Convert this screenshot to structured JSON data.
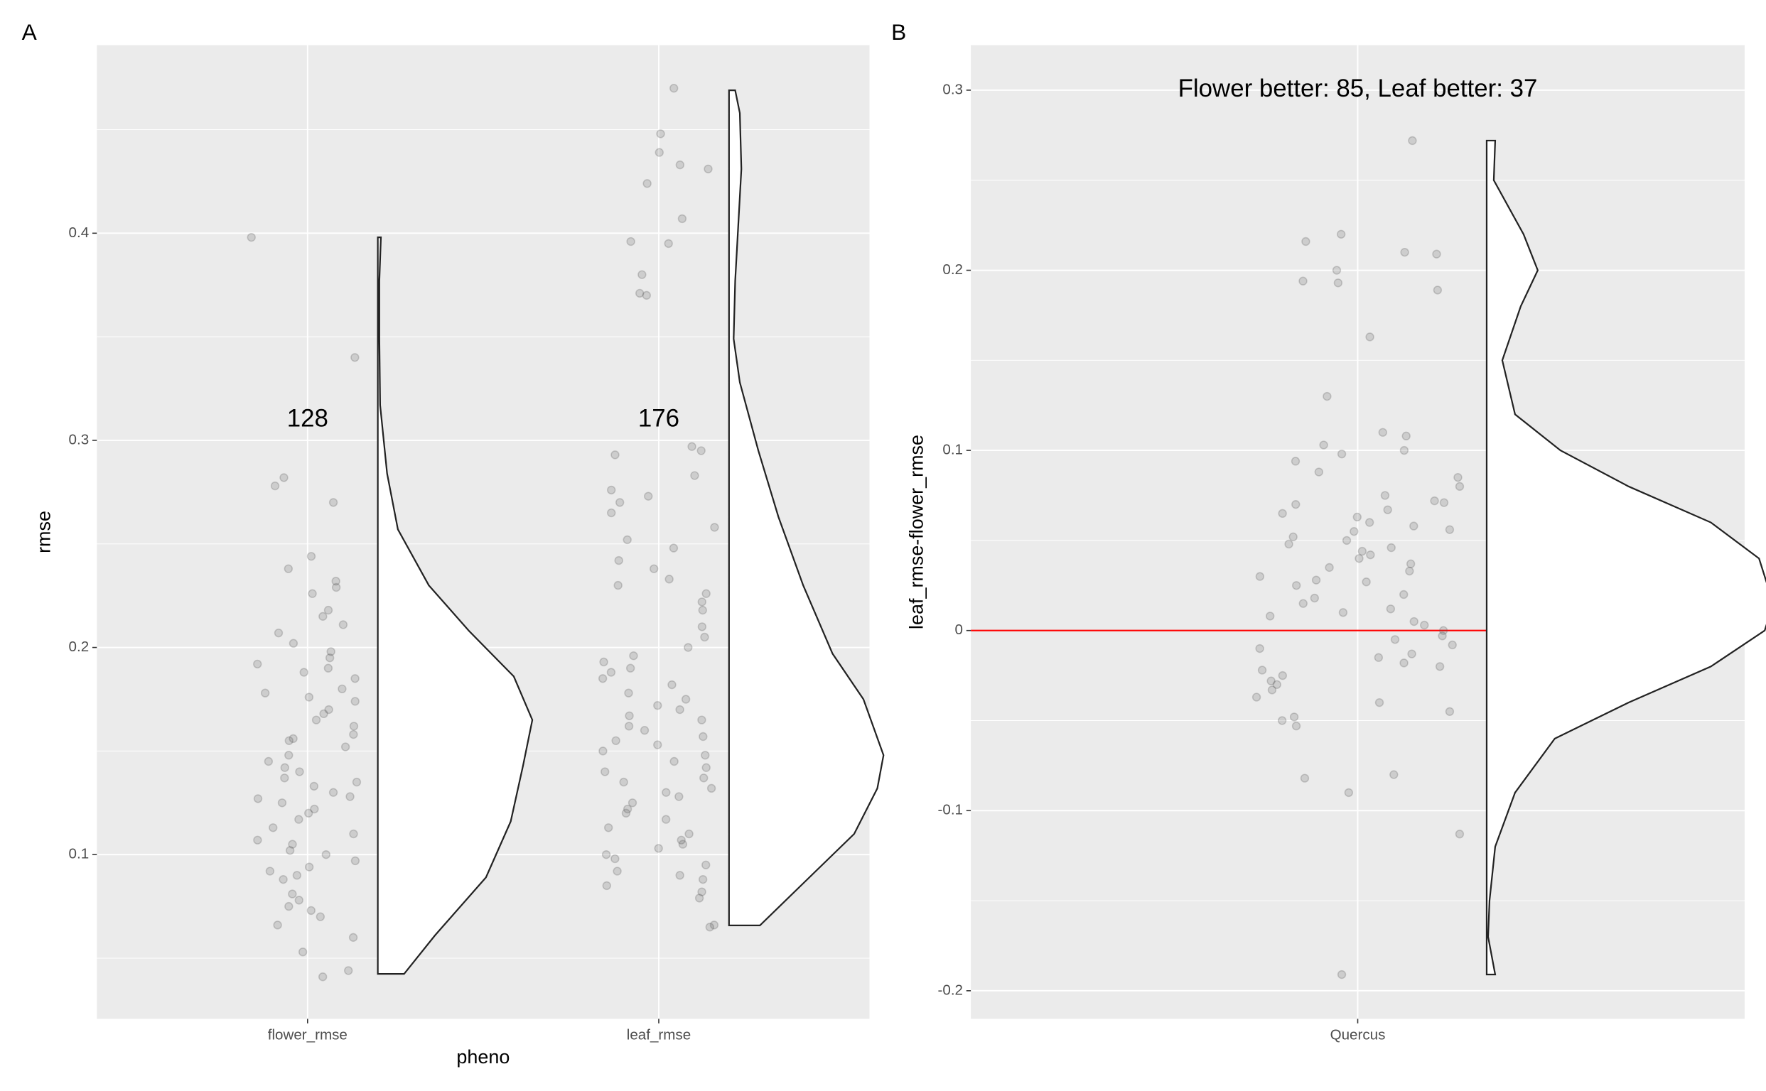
{
  "chart_data": [
    {
      "type": "raincloud",
      "tag": "A",
      "ylabel": "rmse",
      "xlabel": "pheno",
      "categories": [
        "flower_rmse",
        "leaf_rmse"
      ],
      "ylim": [
        0.0207,
        0.4908
      ],
      "yticks": [
        0.1,
        0.2,
        0.3,
        0.4
      ],
      "grid": true,
      "count_labels": [
        128,
        176
      ],
      "groups": [
        {
          "points": [
            0.398,
            0.34,
            0.282,
            0.278,
            0.27,
            0.244,
            0.238,
            0.232,
            0.229,
            0.226,
            0.218,
            0.215,
            0.211,
            0.207,
            0.202,
            0.198,
            0.195,
            0.192,
            0.19,
            0.188,
            0.185,
            0.18,
            0.178,
            0.176,
            0.174,
            0.17,
            0.168,
            0.165,
            0.162,
            0.158,
            0.156,
            0.155,
            0.152,
            0.148,
            0.145,
            0.142,
            0.14,
            0.137,
            0.135,
            0.133,
            0.13,
            0.128,
            0.127,
            0.125,
            0.122,
            0.12,
            0.117,
            0.113,
            0.11,
            0.107,
            0.105,
            0.102,
            0.1,
            0.097,
            0.094,
            0.092,
            0.09,
            0.088,
            0.081,
            0.078,
            0.075,
            0.073,
            0.07,
            0.066,
            0.06,
            0.053,
            0.044,
            0.041
          ],
          "density": {
            "y": [
              0.0424,
              0.061,
              0.089,
              0.116,
              0.143,
              0.165,
              0.186,
              0.208,
              0.23,
              0.257,
              0.284,
              0.317,
              0.349,
              0.377,
              0.398
            ],
            "width": [
              0.17,
              0.37,
              0.7,
              0.86,
              0.94,
              1.0,
              0.88,
              0.59,
              0.33,
              0.13,
              0.06,
              0.015,
              0.01,
              0.01,
              0.02
            ]
          }
        },
        {
          "points": [
            0.47,
            0.448,
            0.439,
            0.433,
            0.431,
            0.424,
            0.407,
            0.396,
            0.395,
            0.38,
            0.371,
            0.37,
            0.297,
            0.295,
            0.293,
            0.283,
            0.276,
            0.273,
            0.27,
            0.265,
            0.258,
            0.252,
            0.248,
            0.242,
            0.238,
            0.233,
            0.23,
            0.226,
            0.222,
            0.218,
            0.21,
            0.205,
            0.2,
            0.196,
            0.193,
            0.19,
            0.188,
            0.185,
            0.182,
            0.178,
            0.175,
            0.172,
            0.17,
            0.167,
            0.165,
            0.162,
            0.16,
            0.157,
            0.155,
            0.153,
            0.15,
            0.148,
            0.145,
            0.142,
            0.14,
            0.137,
            0.135,
            0.132,
            0.13,
            0.128,
            0.125,
            0.122,
            0.12,
            0.117,
            0.113,
            0.11,
            0.107,
            0.105,
            0.103,
            0.1,
            0.098,
            0.095,
            0.092,
            0.09,
            0.088,
            0.085,
            0.082,
            0.079,
            0.066,
            0.065
          ],
          "density": {
            "y": [
              0.0658,
              0.089,
              0.11,
              0.132,
              0.148,
              0.175,
              0.197,
              0.23,
              0.263,
              0.295,
              0.328,
              0.349,
              0.377,
              0.431,
              0.458,
              0.469
            ],
            "width": [
              0.2,
              0.52,
              0.81,
              0.96,
              1.0,
              0.87,
              0.67,
              0.48,
              0.32,
              0.19,
              0.07,
              0.03,
              0.04,
              0.08,
              0.07,
              0.04
            ]
          }
        }
      ]
    },
    {
      "type": "raincloud",
      "tag": "B",
      "ylabel": "leaf_rmse-flower_rmse",
      "categories": [
        "Quercus"
      ],
      "ylim": [
        -0.2156,
        0.325
      ],
      "yticks": [
        -0.2,
        -0.1,
        0.0,
        0.1,
        0.2,
        0.3
      ],
      "grid": true,
      "annotation": "Flower better: 85, Leaf better: 37",
      "hline": {
        "value": 0,
        "color": "#ff0000"
      },
      "groups": [
        {
          "points": [
            0.272,
            0.22,
            0.216,
            0.21,
            0.209,
            0.2,
            0.194,
            0.193,
            0.189,
            0.163,
            0.13,
            0.11,
            0.108,
            0.103,
            0.1,
            0.098,
            0.094,
            0.088,
            0.085,
            0.08,
            0.075,
            0.072,
            0.071,
            0.07,
            0.067,
            0.065,
            0.063,
            0.06,
            0.058,
            0.056,
            0.055,
            0.052,
            0.05,
            0.048,
            0.046,
            0.044,
            0.042,
            0.04,
            0.037,
            0.035,
            0.033,
            0.03,
            0.028,
            0.027,
            0.025,
            0.02,
            0.018,
            0.015,
            0.012,
            0.01,
            0.008,
            0.005,
            0.003,
            0.0,
            -0.003,
            -0.005,
            -0.008,
            -0.01,
            -0.013,
            -0.015,
            -0.018,
            -0.02,
            -0.022,
            -0.025,
            -0.028,
            -0.03,
            -0.033,
            -0.037,
            -0.04,
            -0.045,
            -0.048,
            -0.05,
            -0.053,
            -0.08,
            -0.082,
            -0.09,
            -0.113,
            -0.191
          ],
          "density": {
            "y": [
              -0.191,
              -0.17,
              -0.15,
              -0.12,
              -0.09,
              -0.06,
              -0.04,
              -0.02,
              0.0,
              0.01,
              0.025,
              0.04,
              0.06,
              0.08,
              0.1,
              0.12,
              0.15,
              0.18,
              0.2,
              0.22,
              0.25,
              0.272
            ],
            "width": [
              0.03,
              0.005,
              0.01,
              0.03,
              0.1,
              0.24,
              0.5,
              0.79,
              0.98,
              1.0,
              0.99,
              0.96,
              0.79,
              0.5,
              0.26,
              0.1,
              0.055,
              0.12,
              0.18,
              0.13,
              0.025,
              0.03
            ]
          }
        }
      ]
    }
  ]
}
